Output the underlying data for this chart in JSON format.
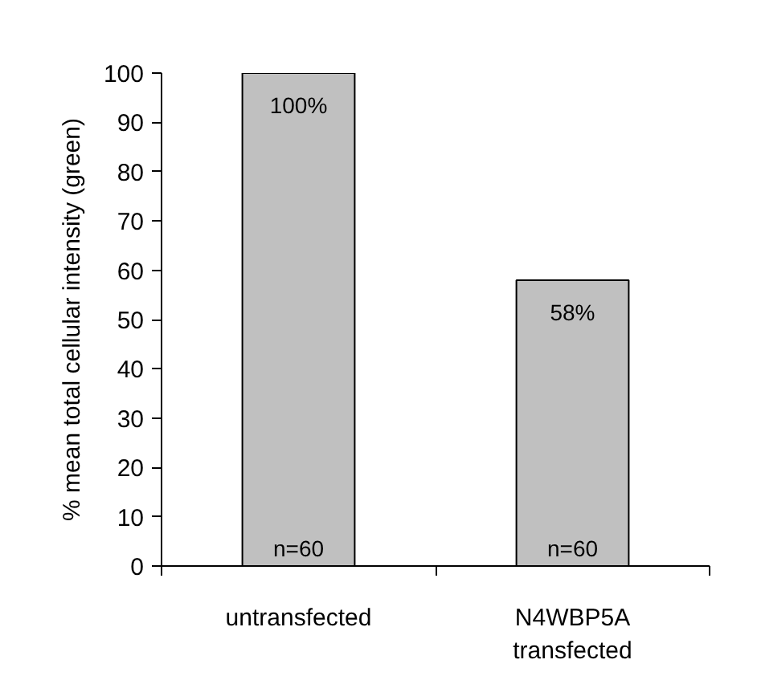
{
  "chart_data": {
    "type": "bar",
    "ylabel": "% mean total cellular intensity (green)",
    "categories": [
      "untransfected",
      "N4WBP5A\ntransfected"
    ],
    "values": [
      100,
      58
    ],
    "color": "#c0c0c0",
    "value_labels": [
      "100%",
      "58%"
    ],
    "annotations": [
      {
        "text": "n=60",
        "x": "untransfected",
        "y": 0
      },
      {
        "text": "n=60",
        "x": "N4WBP5A\ntransfected",
        "y": 0
      }
    ],
    "ylim": [
      0,
      100
    ],
    "yticks": [
      0,
      10,
      20,
      30,
      40,
      50,
      60,
      70,
      80,
      90,
      100
    ],
    "grid": false
  }
}
